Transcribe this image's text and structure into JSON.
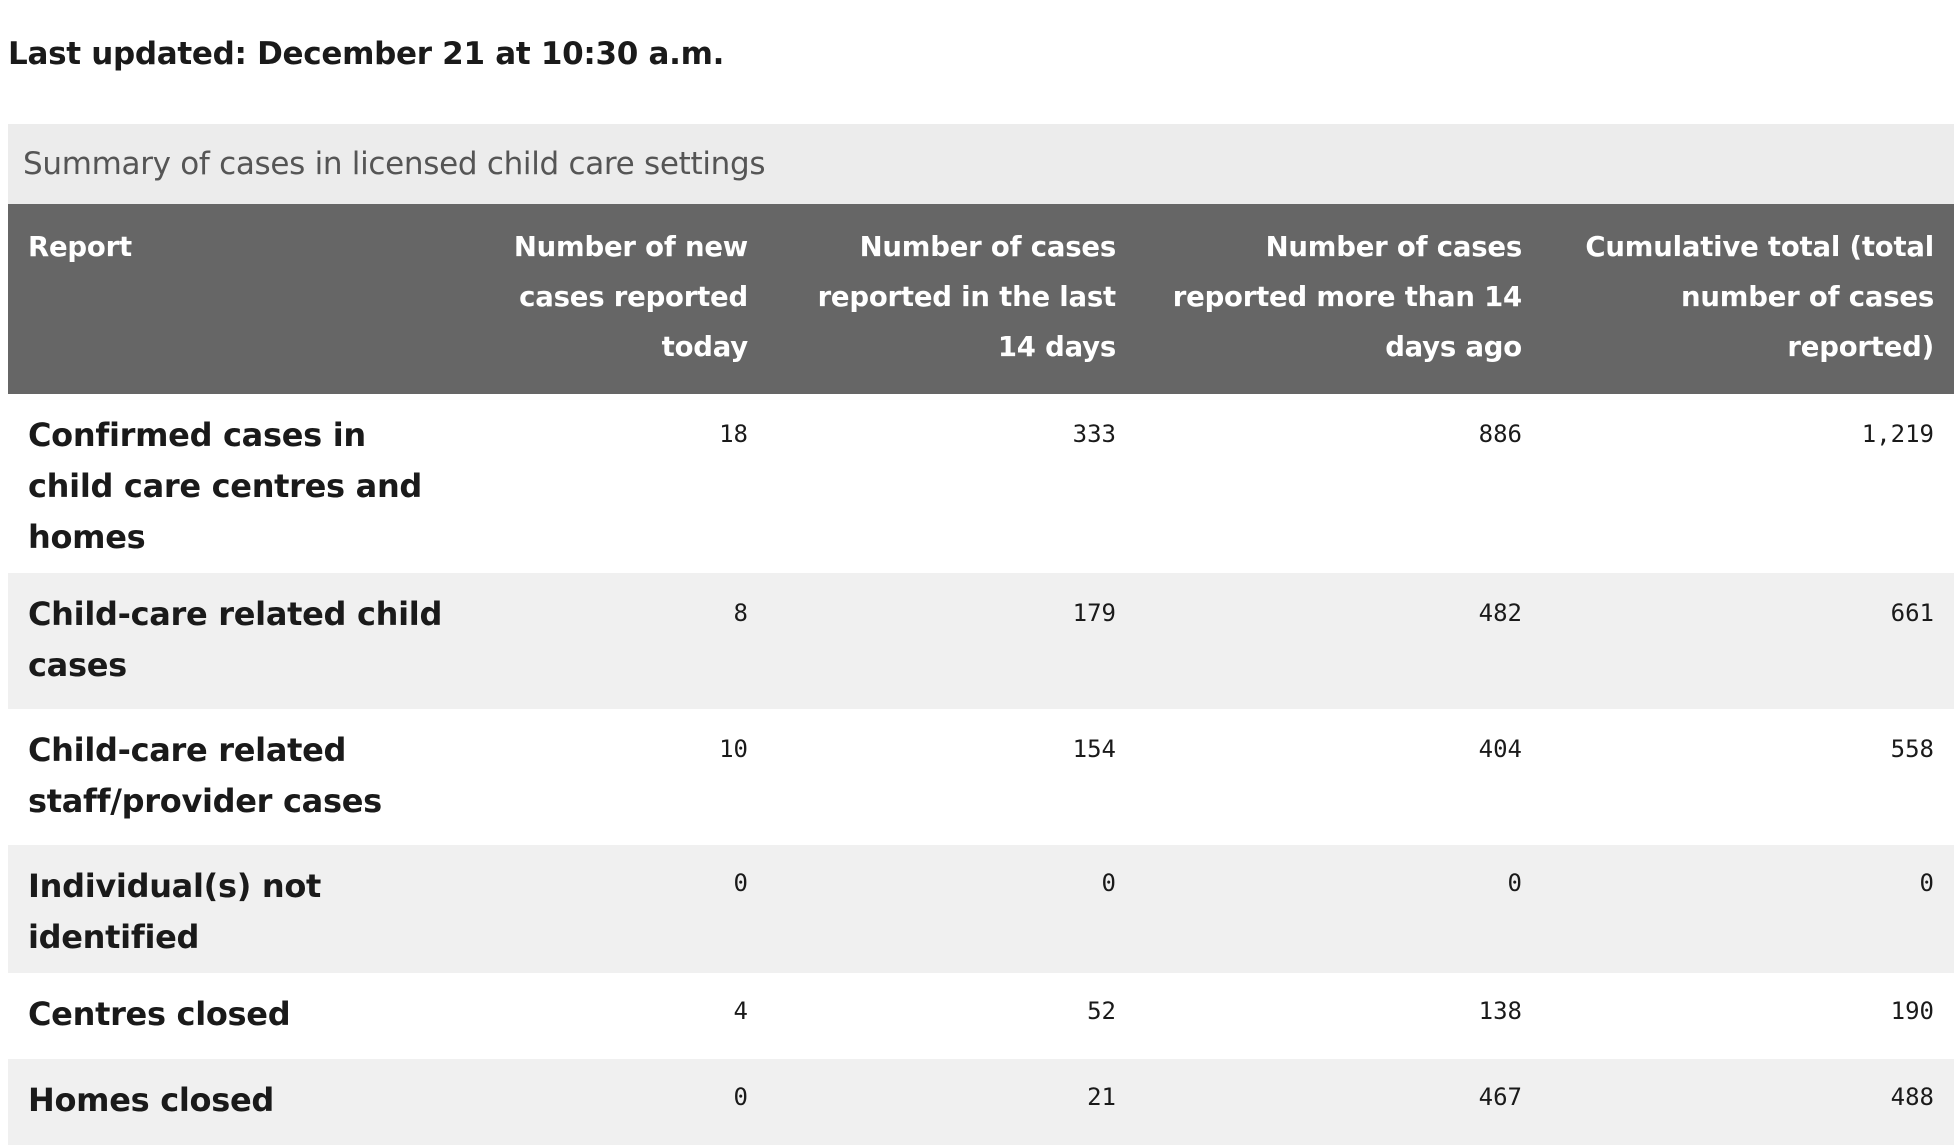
{
  "last_updated": "Last updated: December 21 at 10:30 a.m.",
  "table": {
    "caption": "Summary of cases in licensed child care settings",
    "headers": [
      "Report",
      "Number of new cases reported today",
      "Number of cases reported in the last 14 days",
      "Number of cases reported more than 14 days ago",
      "Cumulative total (total number of cases reported)"
    ],
    "rows": [
      {
        "label": "Confirmed cases in child care centres and homes",
        "values": [
          "18",
          "333",
          "886",
          "1,219"
        ]
      },
      {
        "label": "Child-care related child cases",
        "values": [
          "8",
          "179",
          "482",
          "661"
        ]
      },
      {
        "label": "Child-care related staff/provider cases",
        "values": [
          "10",
          "154",
          "404",
          "558"
        ]
      },
      {
        "label": "Individual(s) not identified",
        "values": [
          "0",
          "0",
          "0",
          "0"
        ]
      },
      {
        "label": "Centres closed",
        "values": [
          "4",
          "52",
          "138",
          "190"
        ]
      },
      {
        "label": "Homes closed",
        "values": [
          "0",
          "21",
          "467",
          "488"
        ]
      }
    ]
  }
}
